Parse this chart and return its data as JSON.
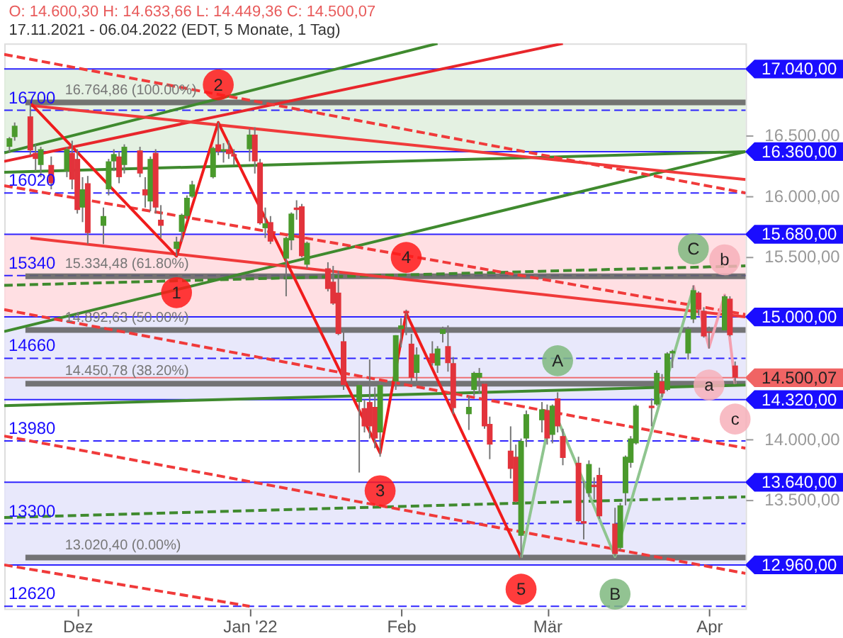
{
  "chart_data": {
    "type": "candlestick",
    "title": "O: 14.600,30  H: 14.633,66  L: 14.449,36  C: 14.500,07",
    "subtitle": "17.11.2021 - 06.04.2022  (EDT, 5 Monate, 1 Tag)",
    "x": [
      "2021-11-18",
      "2021-11-19",
      "2021-11-22",
      "2021-11-23",
      "2021-11-24",
      "2021-11-26",
      "2021-11-29",
      "2021-11-30",
      "2021-12-01",
      "2021-12-02",
      "2021-12-03",
      "2021-12-06",
      "2021-12-07",
      "2021-12-08",
      "2021-12-09",
      "2021-12-10",
      "2021-12-13",
      "2021-12-14",
      "2021-12-15",
      "2021-12-16",
      "2021-12-17",
      "2021-12-20",
      "2021-12-21",
      "2021-12-22",
      "2021-12-23",
      "2021-12-27",
      "2021-12-28",
      "2021-12-29",
      "2021-12-30",
      "2021-12-31",
      "2022-01-03",
      "2022-01-04",
      "2022-01-05",
      "2022-01-06",
      "2022-01-07",
      "2022-01-10",
      "2022-01-11",
      "2022-01-12",
      "2022-01-13",
      "2022-01-14",
      "2022-01-18",
      "2022-01-19",
      "2022-01-20",
      "2022-01-21",
      "2022-01-24",
      "2022-01-25",
      "2022-01-26",
      "2022-01-27",
      "2022-01-28",
      "2022-01-31",
      "2022-02-01",
      "2022-02-02",
      "2022-02-03",
      "2022-02-04",
      "2022-02-07",
      "2022-02-08",
      "2022-02-09",
      "2022-02-10",
      "2022-02-11",
      "2022-02-14",
      "2022-02-15",
      "2022-02-16",
      "2022-02-17",
      "2022-02-18",
      "2022-02-22",
      "2022-02-23",
      "2022-02-24",
      "2022-02-25",
      "2022-02-28",
      "2022-03-01",
      "2022-03-02",
      "2022-03-03",
      "2022-03-04",
      "2022-03-07",
      "2022-03-08",
      "2022-03-09",
      "2022-03-10",
      "2022-03-11",
      "2022-03-14",
      "2022-03-15",
      "2022-03-16",
      "2022-03-17",
      "2022-03-18",
      "2022-03-21",
      "2022-03-22",
      "2022-03-23",
      "2022-03-24",
      "2022-03-25",
      "2022-03-28",
      "2022-03-29",
      "2022-03-30",
      "2022-03-31",
      "2022-04-01",
      "2022-04-04",
      "2022-04-05",
      "2022-04-06"
    ],
    "ohlc": [
      [
        16400,
        16480,
        16350,
        16470
      ],
      [
        16480,
        16600,
        16450,
        16573
      ],
      [
        16650,
        16765,
        16330,
        16370
      ],
      [
        16350,
        16420,
        16200,
        16300
      ],
      [
        16250,
        16400,
        16150,
        16380
      ],
      [
        16250,
        16320,
        16050,
        16100
      ],
      [
        16200,
        16400,
        16150,
        16380
      ],
      [
        16350,
        16450,
        16050,
        16130
      ],
      [
        16300,
        16380,
        15850,
        15880
      ],
      [
        15900,
        16150,
        15780,
        16050
      ],
      [
        16100,
        16160,
        15600,
        15690
      ],
      [
        15750,
        15900,
        15600,
        15830
      ],
      [
        16050,
        16300,
        16000,
        16280
      ],
      [
        16280,
        16380,
        16200,
        16340
      ],
      [
        16320,
        16360,
        16100,
        16150
      ],
      [
        16250,
        16420,
        16180,
        16400
      ],
      [
        16370,
        16400,
        16150,
        16180
      ],
      [
        16050,
        16150,
        15900,
        16000
      ],
      [
        15950,
        16320,
        15870,
        16300
      ],
      [
        16350,
        16380,
        15850,
        15900
      ],
      [
        15800,
        15920,
        15650,
        15750
      ],
      [
        15560,
        15660,
        15500,
        15620
      ],
      [
        15700,
        15850,
        15620,
        15840
      ],
      [
        15830,
        16000,
        15800,
        15980
      ],
      [
        15990,
        16120,
        15980,
        16090
      ],
      [
        16150,
        16400,
        16140,
        16390
      ],
      [
        16420,
        16600,
        16330,
        16360
      ],
      [
        16360,
        16430,
        16270,
        16380
      ],
      [
        16380,
        16450,
        16300,
        16340
      ],
      [
        16340,
        16380,
        16250,
        16320
      ],
      [
        16380,
        16550,
        16280,
        16500
      ],
      [
        16500,
        16560,
        16180,
        16280
      ],
      [
        16270,
        16300,
        15760,
        15770
      ],
      [
        15730,
        15900,
        15650,
        15770
      ],
      [
        15780,
        15830,
        15600,
        15620
      ],
      [
        15480,
        15660,
        15170,
        15650
      ],
      [
        15630,
        15860,
        15550,
        15850
      ],
      [
        15900,
        15960,
        15800,
        15880
      ],
      [
        15910,
        15930,
        15490,
        15500
      ],
      [
        15430,
        15620,
        15400,
        15610
      ],
      [
        15400,
        15450,
        15210,
        15230
      ],
      [
        15290,
        15420,
        15100,
        15110
      ],
      [
        15200,
        15380,
        14850,
        14860
      ],
      [
        14800,
        14900,
        14400,
        14440
      ],
      [
        14300,
        14470,
        13720,
        14440
      ],
      [
        14250,
        14320,
        14050,
        14100
      ],
      [
        14300,
        14650,
        14000,
        14100
      ],
      [
        14260,
        14420,
        13920,
        14000
      ],
      [
        14050,
        14470,
        13850,
        14440
      ],
      [
        14470,
        14850,
        14400,
        14850
      ],
      [
        14900,
        14990,
        14750,
        14930
      ],
      [
        15050,
        15060,
        14850,
        15030
      ],
      [
        14780,
        14860,
        14450,
        14500
      ],
      [
        14540,
        14750,
        14450,
        14690
      ],
      [
        14700,
        14800,
        14600,
        14620
      ],
      [
        14600,
        14760,
        14540,
        14740
      ],
      [
        14860,
        14920,
        14790,
        14900
      ],
      [
        14760,
        14930,
        14550,
        14620
      ],
      [
        14620,
        14670,
        14200,
        14250
      ],
      [
        14200,
        14350,
        14070,
        14260
      ],
      [
        14400,
        14550,
        14350,
        14540
      ],
      [
        14500,
        14580,
        14370,
        14540
      ],
      [
        14450,
        14470,
        14080,
        14100
      ],
      [
        14120,
        14180,
        13830,
        13950
      ],
      [
        13900,
        14100,
        13670,
        13750
      ],
      [
        13850,
        13950,
        13470,
        13480
      ],
      [
        13200,
        14000,
        13020,
        13980
      ],
      [
        14000,
        14230,
        13930,
        14200
      ],
      [
        14150,
        14300,
        14050,
        14240
      ],
      [
        14230,
        14280,
        13950,
        14000
      ],
      [
        14030,
        14280,
        13960,
        14270
      ],
      [
        14330,
        14380,
        14050,
        14100
      ],
      [
        14020,
        14080,
        13780,
        13840
      ],
      [
        13800,
        13850,
        13310,
        13320
      ],
      [
        13320,
        13650,
        13170,
        13300
      ],
      [
        13550,
        13820,
        13520,
        13790
      ],
      [
        13620,
        13680,
        13500,
        13600
      ],
      [
        13700,
        13760,
        13340,
        13360
      ],
      [
        13300,
        13430,
        13030,
        13050
      ],
      [
        13100,
        13470,
        13080,
        13450
      ],
      [
        13550,
        13860,
        13450,
        13850
      ],
      [
        13800,
        14020,
        13760,
        14000
      ],
      [
        13960,
        14280,
        13950,
        14270
      ],
      [
        14270,
        14330,
        14100,
        14250
      ],
      [
        14280,
        14560,
        14270,
        14540
      ],
      [
        14470,
        14530,
        14340,
        14370
      ],
      [
        14400,
        14710,
        14390,
        14700
      ],
      [
        14700,
        14730,
        14580,
        14720
      ],
      [
        14700,
        14920,
        14650,
        14900
      ],
      [
        14980,
        15260,
        14950,
        15220
      ],
      [
        15200,
        15210,
        15010,
        15060
      ],
      [
        15050,
        15080,
        14830,
        14840
      ],
      [
        14880,
        14920,
        14740,
        14870
      ],
      [
        14890,
        15180,
        14880,
        15170
      ],
      [
        15150,
        15170,
        14840,
        14850
      ],
      [
        14600.3,
        14633.66,
        14449.36,
        14500.07
      ]
    ],
    "colors": [
      "#4a9a2c",
      "#4a9a2c",
      "#e2333b",
      "#e2333b",
      "#4a9a2c",
      "#e2333b",
      "#4a9a2c",
      "#e2333b",
      "#e2333b",
      "#4a9a2c",
      "#e2333b",
      "#4a9a2c",
      "#4a9a2c",
      "#4a9a2c",
      "#e2333b",
      "#4a9a2c",
      "#e2333b",
      "#e2333b",
      "#4a9a2c",
      "#e2333b",
      "#e2333b",
      "#4a9a2c",
      "#4a9a2c",
      "#4a9a2c",
      "#4a9a2c",
      "#4a9a2c",
      "#e2333b",
      "#4a9a2c",
      "#e2333b",
      "#e2333b",
      "#4a9a2c",
      "#e2333b",
      "#e2333b",
      "#4a9a2c",
      "#e2333b",
      "#4a9a2c",
      "#4a9a2c",
      "#e2333b",
      "#e2333b",
      "#4a9a2c",
      "#e2333b",
      "#e2333b",
      "#e2333b",
      "#e2333b",
      "#4a9a2c",
      "#e2333b",
      "#e2333b",
      "#e2333b",
      "#4a9a2c",
      "#4a9a2c",
      "#4a9a2c",
      "#e2333b",
      "#e2333b",
      "#4a9a2c",
      "#e2333b",
      "#4a9a2c",
      "#4a9a2c",
      "#e2333b",
      "#e2333b",
      "#4a9a2c",
      "#4a9a2c",
      "#4a9a2c",
      "#e2333b",
      "#e2333b",
      "#e2333b",
      "#e2333b",
      "#4a9a2c",
      "#4a9a2c",
      "#4a9a2c",
      "#e2333b",
      "#4a9a2c",
      "#e2333b",
      "#e2333b",
      "#e2333b",
      "#e2333b",
      "#4a9a2c",
      "#e2333b",
      "#e2333b",
      "#e2333b",
      "#4a9a2c",
      "#4a9a2c",
      "#4a9a2c",
      "#4a9a2c",
      "#e2333b",
      "#4a9a2c",
      "#e2333b",
      "#4a9a2c",
      "#4a9a2c",
      "#4a9a2c",
      "#4a9a2c",
      "#e2333b",
      "#e2333b",
      "#e2333b",
      "#4a9a2c",
      "#e2333b",
      "#e2333b"
    ],
    "series": [
      {
        "type": "line",
        "color": "#e8262b",
        "x": [
          "2021-11-17",
          "2022-03-04"
        ],
        "values": [
          16280,
          17250
        ]
      },
      {
        "type": "line",
        "color": "#3f8a2e",
        "x": [
          "2021-11-17",
          "2022-02-08"
        ],
        "values": [
          16350,
          17250
        ]
      },
      {
        "type": "line",
        "color": "#3f8a2e",
        "x": [
          "2021-11-17",
          "2022-04-08"
        ],
        "values": [
          14880,
          16360
        ]
      },
      {
        "type": "line",
        "color": "#3f8a2e",
        "x": [
          "2021-11-17",
          "2022-04-08"
        ],
        "values": [
          16190,
          16360
        ]
      },
      {
        "type": "line",
        "color": "#3f8a2e",
        "x": [
          "2021-11-17",
          "2022-04-08"
        ],
        "values": [
          14270,
          14440
        ]
      },
      {
        "type": "line",
        "color": "#3f8a2e",
        "line_style": "dashed",
        "x": [
          "2021-11-17",
          "2022-04-08"
        ],
        "values": [
          15260,
          15420
        ]
      },
      {
        "type": "line",
        "color": "#3f8a2e",
        "line_style": "dashed",
        "x": [
          "2021-11-17",
          "2022-04-08"
        ],
        "values": [
          13350,
          13520
        ]
      },
      {
        "type": "line",
        "color": "#f03a3a",
        "x": [
          "2021-11-22",
          "2022-04-08"
        ],
        "values": [
          16740,
          16130
        ]
      },
      {
        "type": "line",
        "color": "#f03a3a",
        "x": [
          "2021-11-22",
          "2022-04-08"
        ],
        "values": [
          15650,
          15000
        ]
      },
      {
        "type": "line",
        "color": "#f03a3a",
        "line_style": "dashed",
        "x": [
          "2021-11-17",
          "2022-04-08"
        ],
        "values": [
          17160,
          16020
        ]
      },
      {
        "type": "line",
        "color": "#f03a3a",
        "line_style": "dashed",
        "x": [
          "2021-11-17",
          "2022-04-08"
        ],
        "values": [
          16080,
          15020
        ]
      },
      {
        "type": "line",
        "color": "#f03a3a",
        "line_style": "dashed",
        "x": [
          "2021-11-17",
          "2022-04-08"
        ],
        "values": [
          15060,
          13920
        ]
      },
      {
        "type": "line",
        "color": "#f03a3a",
        "line_style": "dashed",
        "x": [
          "2021-11-17",
          "2022-04-08"
        ],
        "values": [
          14020,
          12890
        ]
      },
      {
        "type": "line",
        "color": "#f03a3a",
        "line_style": "dashed",
        "x": [
          "2021-11-17",
          "2022-01-03"
        ],
        "values": [
          12960,
          12620
        ]
      },
      {
        "type": "line",
        "color": "#f01c1c",
        "x": [
          "2021-11-22",
          "2021-12-20",
          "2021-12-28",
          "2022-01-28",
          "2022-02-02",
          "2022-02-24"
        ],
        "values": [
          16760,
          15500,
          16600,
          13880,
          15030,
          13020
        ]
      },
      {
        "type": "line",
        "color": "#8fc58f",
        "x": [
          "2022-02-24",
          "2022-03-02",
          "2022-03-14",
          "2022-03-29"
        ],
        "values": [
          13020,
          14260,
          13030,
          15240
        ]
      },
      {
        "type": "line",
        "color": "#f4a0b0",
        "x": [
          "2022-03-29",
          "2022-04-01",
          "2022-04-04",
          "2022-04-06"
        ],
        "values": [
          15260,
          14750,
          15180,
          14450
        ]
      }
    ],
    "bands": [
      {
        "axis": "y",
        "from": 12960,
        "to": 13640,
        "color": "#e4e4fa"
      },
      {
        "axis": "y",
        "from": 14320,
        "to": 15000,
        "color": "#e4e4fa"
      },
      {
        "axis": "y",
        "from": 15000,
        "to": 15680,
        "color": "#ffd9de"
      },
      {
        "axis": "y",
        "from": 16360,
        "to": 17040,
        "color": "#dfeedd"
      }
    ],
    "ref_lines": [
      {
        "axis": "y",
        "value": 17040,
        "label": "17.040,00",
        "color": "#1a0dff",
        "line_style": "solid"
      },
      {
        "axis": "y",
        "value": 16360,
        "label": "16.360,00",
        "color": "#1a0dff",
        "line_style": "solid"
      },
      {
        "axis": "y",
        "value": 15680,
        "label": "15.680,00",
        "color": "#1a0dff",
        "line_style": "solid"
      },
      {
        "axis": "y",
        "value": 15000,
        "label": "15.000,00",
        "color": "#1a0dff",
        "line_style": "solid"
      },
      {
        "axis": "y",
        "value": 14320,
        "label": "14.320,00",
        "color": "#1a0dff",
        "line_style": "solid"
      },
      {
        "axis": "y",
        "value": 13640,
        "label": "13.640,00",
        "color": "#1a0dff",
        "line_style": "solid"
      },
      {
        "axis": "y",
        "value": 12960,
        "label": "12.960,00",
        "color": "#1a0dff",
        "line_style": "solid"
      },
      {
        "axis": "y",
        "value": 14500.07,
        "label": "14.500,07",
        "color": "#f06464",
        "line_style": "solid"
      },
      {
        "axis": "y",
        "value": 16700,
        "label": "16700",
        "color": "#1a0dff",
        "line_style": "dashed"
      },
      {
        "axis": "y",
        "value": 16020,
        "label": "16020",
        "color": "#1a0dff",
        "line_style": "dashed"
      },
      {
        "axis": "y",
        "value": 15340,
        "label": "15340",
        "color": "#1a0dff",
        "line_style": "dashed"
      },
      {
        "axis": "y",
        "value": 14660,
        "label": "14660",
        "color": "#1a0dff",
        "line_style": "dashed"
      },
      {
        "axis": "y",
        "value": 13980,
        "label": "13980",
        "color": "#1a0dff",
        "line_style": "dashed"
      },
      {
        "axis": "y",
        "value": 13300,
        "label": "13300",
        "color": "#1a0dff",
        "line_style": "dashed"
      },
      {
        "axis": "y",
        "value": 12620,
        "label": "12620",
        "color": "#1a0dff",
        "line_style": "dashed"
      },
      {
        "axis": "y",
        "value": 16764.86,
        "label": "16.764,86 (100.00%)",
        "color": "#666666",
        "line_style": "solid"
      },
      {
        "axis": "y",
        "value": 15334.48,
        "label": "15.334,48 (61.80%)",
        "color": "#666666",
        "line_style": "solid"
      },
      {
        "axis": "y",
        "value": 14892.63,
        "label": "14.892,63 (50.00%)",
        "color": "#666666",
        "line_style": "solid"
      },
      {
        "axis": "y",
        "value": 14450.78,
        "label": "14.450,78 (38.20%)",
        "color": "#666666",
        "line_style": "solid"
      },
      {
        "axis": "y",
        "value": 13020.4,
        "label": "13.020,40 (0.00%)",
        "color": "#666666",
        "line_style": "solid"
      }
    ],
    "annotations": [
      {
        "text": "1",
        "x": "2021-12-20",
        "y": 15200
      },
      {
        "text": "2",
        "x": "2021-12-28",
        "y": 16910
      },
      {
        "text": "3",
        "x": "2022-01-28",
        "y": 13570
      },
      {
        "text": "4",
        "x": "2022-02-02",
        "y": 15490
      },
      {
        "text": "5",
        "x": "2022-02-24",
        "y": 12760
      },
      {
        "text": "A",
        "x": "2022-03-03",
        "y": 14640
      },
      {
        "text": "B",
        "x": "2022-03-14",
        "y": 12720
      },
      {
        "text": "C",
        "x": "2022-03-29",
        "y": 15560
      },
      {
        "text": "a",
        "x": "2022-04-01",
        "y": 14440
      },
      {
        "text": "b",
        "x": "2022-04-04",
        "y": 15470
      },
      {
        "text": "c",
        "x": "2022-04-06",
        "y": 14160
      }
    ],
    "xlim": [
      "2021-11-17",
      "2022-04-08"
    ],
    "xticks": [
      {
        "value": "2021-12-01",
        "label": "Dez"
      },
      {
        "value": "2022-01-03",
        "label": "Jan '22"
      },
      {
        "value": "2022-02-01",
        "label": "Feb"
      },
      {
        "value": "2022-03-01",
        "label": "Mär"
      },
      {
        "value": "2022-04-01",
        "label": "Apr"
      }
    ],
    "ylim": [
      12600,
      17250
    ],
    "yticks": [
      {
        "value": 13500,
        "label": "13.500,00"
      },
      {
        "value": 14000,
        "label": "14.000,00"
      },
      {
        "value": 15500,
        "label": "15.500,00"
      },
      {
        "value": 16000,
        "label": "16.000,00"
      },
      {
        "value": 16500,
        "label": "16.500,00"
      }
    ],
    "grid": false
  }
}
